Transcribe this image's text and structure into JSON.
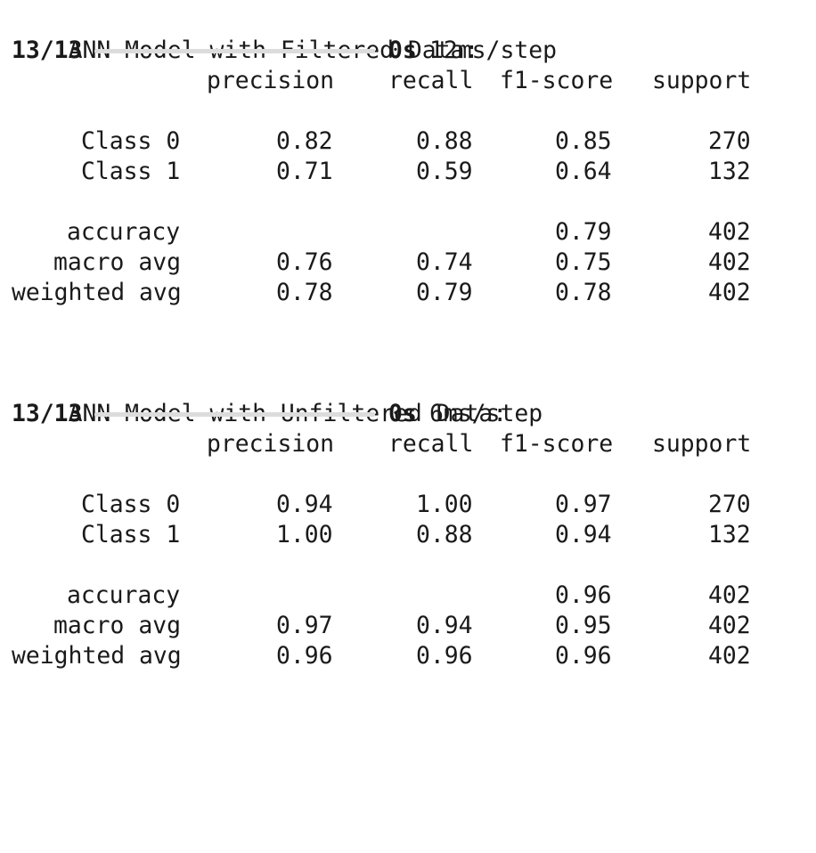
{
  "theme": {
    "progress_color": "#4aa25e"
  },
  "reports": [
    {
      "title": "ANN Model with Filtered Data:",
      "progress": {
        "steps": "13/13",
        "fraction": 1.0,
        "elapsed": "0s",
        "rate": "12ms/step"
      },
      "columns": [
        "precision",
        "recall",
        "f1-score",
        "support"
      ],
      "rows": [
        {
          "label": "Class 0",
          "precision": "0.82",
          "recall": "0.88",
          "f1": "0.85",
          "support": "270"
        },
        {
          "label": "Class 1",
          "precision": "0.71",
          "recall": "0.59",
          "f1": "0.64",
          "support": "132"
        }
      ],
      "summary": [
        {
          "label": "accuracy",
          "precision": "",
          "recall": "",
          "f1": "0.79",
          "support": "402"
        },
        {
          "label": "macro avg",
          "precision": "0.76",
          "recall": "0.74",
          "f1": "0.75",
          "support": "402"
        },
        {
          "label": "weighted avg",
          "precision": "0.78",
          "recall": "0.79",
          "f1": "0.78",
          "support": "402"
        }
      ]
    },
    {
      "title": "ANN Model with Unfiltered Data:",
      "progress": {
        "steps": "13/13",
        "fraction": 1.0,
        "elapsed": "0s",
        "rate": "6ms/step"
      },
      "columns": [
        "precision",
        "recall",
        "f1-score",
        "support"
      ],
      "rows": [
        {
          "label": "Class 0",
          "precision": "0.94",
          "recall": "1.00",
          "f1": "0.97",
          "support": "270"
        },
        {
          "label": "Class 1",
          "precision": "1.00",
          "recall": "0.88",
          "f1": "0.94",
          "support": "132"
        }
      ],
      "summary": [
        {
          "label": "accuracy",
          "precision": "",
          "recall": "",
          "f1": "0.96",
          "support": "402"
        },
        {
          "label": "macro avg",
          "precision": "0.97",
          "recall": "0.94",
          "f1": "0.95",
          "support": "402"
        },
        {
          "label": "weighted avg",
          "precision": "0.96",
          "recall": "0.96",
          "f1": "0.96",
          "support": "402"
        }
      ]
    }
  ]
}
